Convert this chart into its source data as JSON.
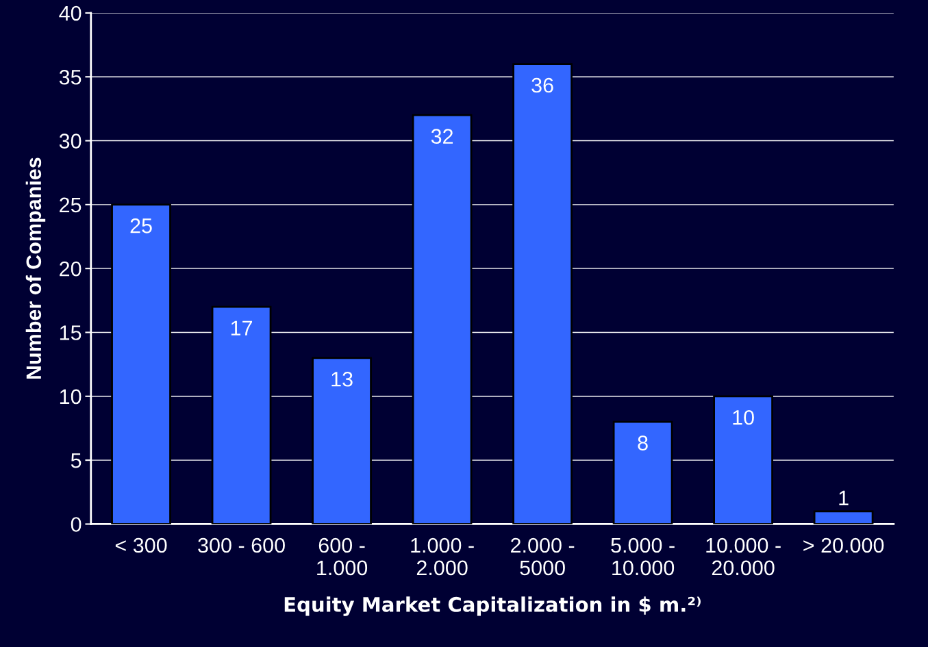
{
  "chart_data": {
    "type": "bar",
    "xlabel": "Equity Market Capitalization in $ m.²⁾",
    "ylabel": "Number of Companies",
    "categories": [
      "< 300",
      "300 - 600",
      "600 -\n1.000",
      "1.000 -\n2.000",
      "2.000 -\n5000",
      "5.000 -\n10.000",
      "10.000 -\n20.000",
      "> 20.000"
    ],
    "values": [
      25,
      17,
      13,
      32,
      36,
      8,
      10,
      1
    ],
    "color": "#3366ff",
    "ylim": [
      0,
      40
    ],
    "yticks": [
      0,
      5,
      10,
      15,
      20,
      25,
      30,
      35,
      40
    ],
    "grid": "y",
    "data_labels": true
  }
}
